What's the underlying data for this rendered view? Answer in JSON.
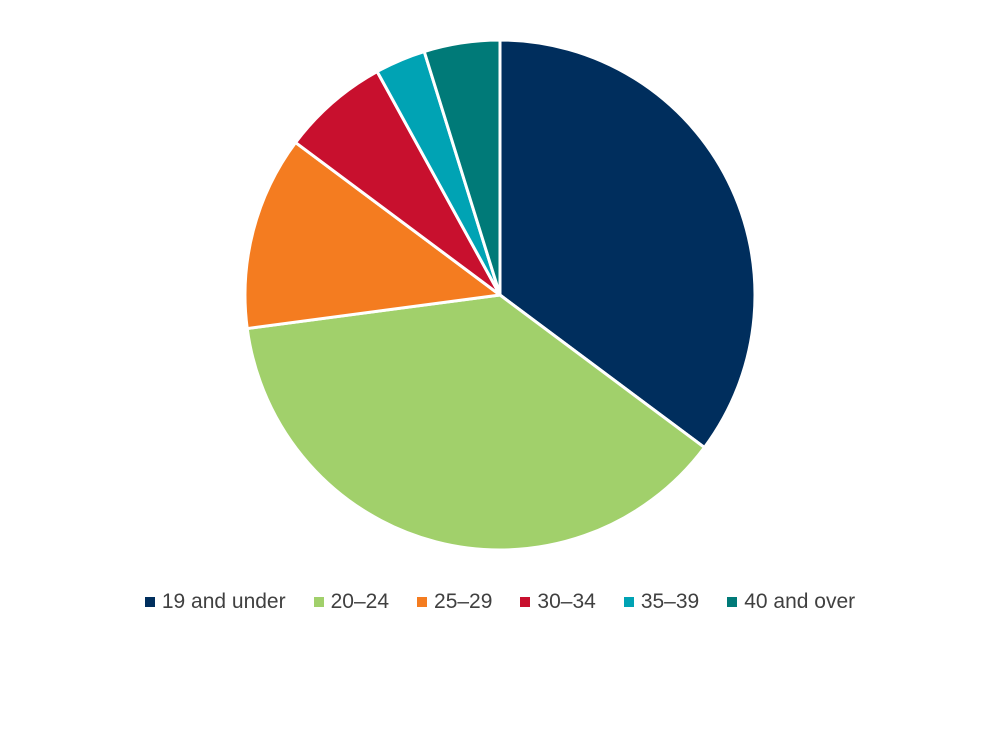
{
  "chart_data": {
    "type": "pie",
    "title": "",
    "categories": [
      "19 and under",
      "20–24",
      "25–29",
      "30–34",
      "35–39",
      "40 and over"
    ],
    "values": [
      35.2,
      37.7,
      12.3,
      6.8,
      3.2,
      4.8
    ],
    "unit": "%",
    "colors": [
      "#002E5D",
      "#A1D06B",
      "#F47C20",
      "#C8102E",
      "#00A3B4",
      "#007A78"
    ],
    "start_angle_deg": 0,
    "direction": "clockwise",
    "legend_position": "bottom"
  }
}
